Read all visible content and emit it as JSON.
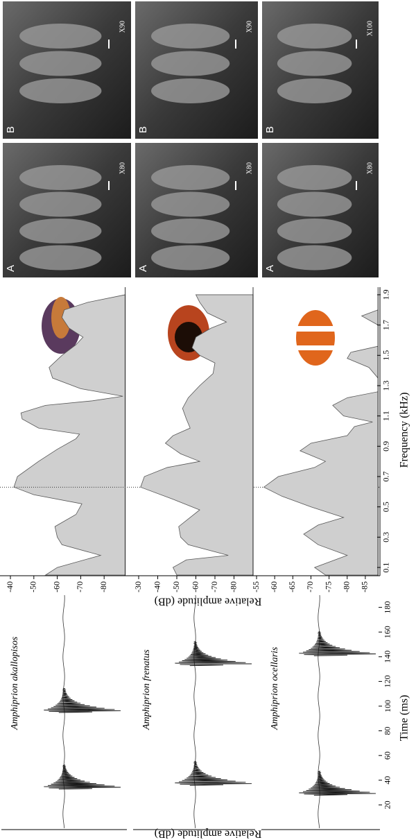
{
  "chart_data": [
    {
      "type": "oscillogram",
      "title": "Amphiprion akallopisos",
      "xlim": [
        0,
        190
      ],
      "pulses": [
        35,
        97
      ]
    },
    {
      "type": "oscillogram",
      "title": "Amphiprion frenatus",
      "y_label": "Relative amplitude (dB)",
      "xlim": [
        0,
        190
      ],
      "pulses": [
        38,
        135
      ]
    },
    {
      "type": "oscillogram",
      "title": "Amphiprion ocellaris",
      "x_label": "Time (ms)",
      "xlim": [
        0,
        190
      ],
      "xticks": [
        20,
        40,
        60,
        80,
        100,
        120,
        140,
        160,
        180
      ],
      "pulses": [
        30,
        143
      ]
    },
    {
      "type": "area",
      "xlim": [
        0.05,
        1.95
      ],
      "ylim": [
        -36,
        -89
      ],
      "yticks": [
        -40,
        -50,
        -60,
        -70,
        -80
      ],
      "peak_line": 0.63,
      "x": [
        0.05,
        0.1,
        0.18,
        0.25,
        0.3,
        0.37,
        0.45,
        0.52,
        0.58,
        0.63,
        0.7,
        0.8,
        0.88,
        0.95,
        0.98,
        1.02,
        1.08,
        1.12,
        1.17,
        1.2,
        1.23,
        1.28,
        1.35,
        1.42,
        1.5,
        1.57,
        1.62,
        1.68,
        1.75,
        1.8,
        1.85,
        1.9
      ],
      "values": [
        -55,
        -60,
        -78.5,
        -62,
        -60,
        -59,
        -68,
        -70.5,
        -50,
        -41.5,
        -43,
        -52,
        -60,
        -68,
        -69.5,
        -52,
        -45,
        -44.5,
        -55,
        -75,
        -88,
        -70,
        -58,
        -56.5,
        -62,
        -68,
        -71,
        -65,
        -62,
        -63,
        -73,
        -89
      ]
    },
    {
      "type": "area",
      "y_label": "Relative amplitude (dB)",
      "xlim": [
        0.05,
        1.95
      ],
      "ylim": [
        -27,
        -90
      ],
      "yticks": [
        -30,
        -40,
        -50,
        -60,
        -70,
        -80
      ],
      "x": [
        0.05,
        0.1,
        0.15,
        0.18,
        0.25,
        0.3,
        0.37,
        0.42,
        0.48,
        0.55,
        0.63,
        0.7,
        0.76,
        0.8,
        0.85,
        0.92,
        0.97,
        1.02,
        1.08,
        1.15,
        1.22,
        1.3,
        1.38,
        1.45,
        1.5,
        1.55,
        1.62,
        1.68,
        1.72,
        1.78,
        1.85,
        1.9
      ],
      "values": [
        -50,
        -48,
        -55,
        -77,
        -56,
        -52,
        -51,
        -56,
        -62,
        -48,
        -31,
        -33,
        -45,
        -62,
        -52,
        -44,
        -48,
        -57,
        -55,
        -53,
        -56,
        -62,
        -69,
        -70,
        -62,
        -58,
        -60,
        -68,
        -76,
        -66,
        -62,
        -60
      ]
    },
    {
      "type": "area",
      "x_label": "Frequency (kHz)",
      "xlim": [
        0.05,
        1.95
      ],
      "ylim": [
        -54,
        -88.5
      ],
      "yticks": [
        -55,
        -60,
        -65,
        -70,
        -75,
        -80,
        -85
      ],
      "xticks": [
        0.1,
        0.3,
        0.5,
        0.7,
        0.9,
        1.1,
        1.3,
        1.5,
        1.7,
        1.9
      ],
      "x": [
        0.05,
        0.1,
        0.18,
        0.25,
        0.32,
        0.38,
        0.43,
        0.5,
        0.57,
        0.63,
        0.7,
        0.76,
        0.8,
        0.87,
        0.92,
        0.97,
        1.03,
        1.06,
        1.1,
        1.17,
        1.22,
        1.26,
        1.35,
        1.42,
        1.48,
        1.52,
        1.56,
        1.7,
        1.76,
        1.8,
        1.9
      ],
      "values": [
        -74,
        -71,
        -80,
        -72,
        -68,
        -72,
        -79,
        -70,
        -62,
        -57,
        -61,
        -71,
        -74,
        -67,
        -70,
        -80,
        -82,
        -87,
        -79,
        -76,
        -80,
        -88.5,
        -88.5,
        -86,
        -80,
        -81,
        -88.5,
        -88.5,
        -84,
        -88.5,
        -88.5
      ]
    }
  ],
  "sem_images": [
    {
      "A": {
        "label": "A",
        "magnification": "X80"
      },
      "B": {
        "label": "B",
        "magnification": "X90"
      }
    },
    {
      "A": {
        "label": "A",
        "magnification": "X80"
      },
      "B": {
        "label": "B",
        "magnification": "X90"
      }
    },
    {
      "A": {
        "label": "A",
        "magnification": "X80"
      },
      "B": {
        "label": "B",
        "magnification": "X100"
      }
    }
  ]
}
